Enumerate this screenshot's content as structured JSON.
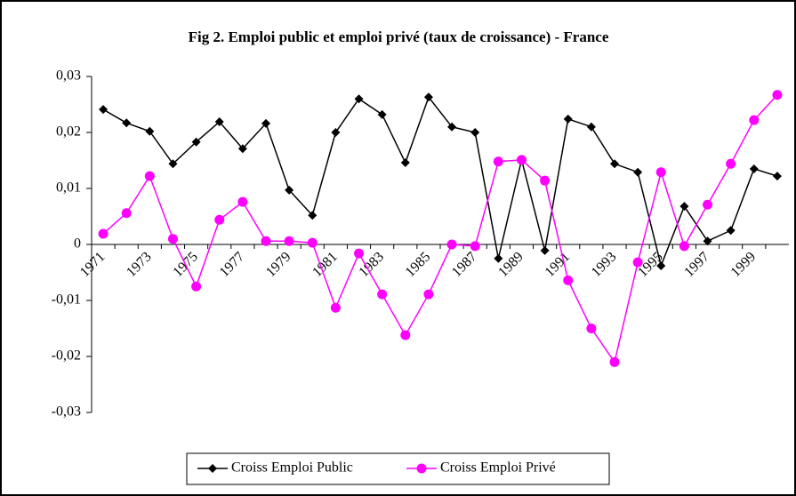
{
  "chart_data": {
    "type": "line",
    "title": "Fig 2. Emploi public et emploi privé (taux de croissance) - France",
    "categories": [
      "1971",
      null,
      "1973",
      null,
      "1975",
      null,
      "1977",
      null,
      "1979",
      null,
      "1981",
      null,
      "1983",
      null,
      "1985",
      null,
      "1987",
      null,
      "1989",
      null,
      "1991",
      null,
      "1993",
      null,
      "1995",
      null,
      "1997",
      null,
      "1999",
      null
    ],
    "series": [
      {
        "name": "Croiss Emploi Public",
        "color": "#000000",
        "marker": "diamond",
        "values": [
          0.0241,
          0.0217,
          0.0202,
          0.0144,
          0.0183,
          0.0219,
          0.0171,
          0.0216,
          0.0097,
          0.0052,
          0.02,
          0.026,
          0.0232,
          0.0146,
          0.0263,
          0.021,
          0.02,
          -0.0025,
          0.0151,
          -0.0011,
          0.0224,
          0.021,
          0.0144,
          0.0129,
          -0.0038,
          0.0068,
          0.0006,
          0.0025,
          0.0135,
          0.0122
        ]
      },
      {
        "name": "Croiss Emploi Privé",
        "color": "#ff00ff",
        "marker": "circle",
        "values": [
          0.0019,
          0.0056,
          0.0122,
          0.001,
          -0.0075,
          0.0044,
          0.0076,
          0.0006,
          0.0006,
          0.0003,
          -0.0113,
          -0.0016,
          -0.0089,
          -0.0162,
          -0.0089,
          0.0,
          -0.0003,
          0.0148,
          0.0151,
          0.0114,
          -0.0064,
          -0.015,
          -0.021,
          -0.0032,
          0.0129,
          -0.0003,
          0.0071,
          0.0144,
          0.0222,
          0.0267
        ]
      }
    ],
    "ylim": [
      -0.03,
      0.03
    ],
    "yticks": [
      {
        "value": -0.03,
        "label": "-0,03"
      },
      {
        "value": -0.02,
        "label": "-0,02"
      },
      {
        "value": -0.01,
        "label": "-0,01"
      },
      0,
      {
        "value": 0.01,
        "label": "0,01"
      },
      {
        "value": 0.02,
        "label": "0,02"
      },
      {
        "value": 0.03,
        "label": "0,03"
      }
    ],
    "legend": "bottom"
  }
}
